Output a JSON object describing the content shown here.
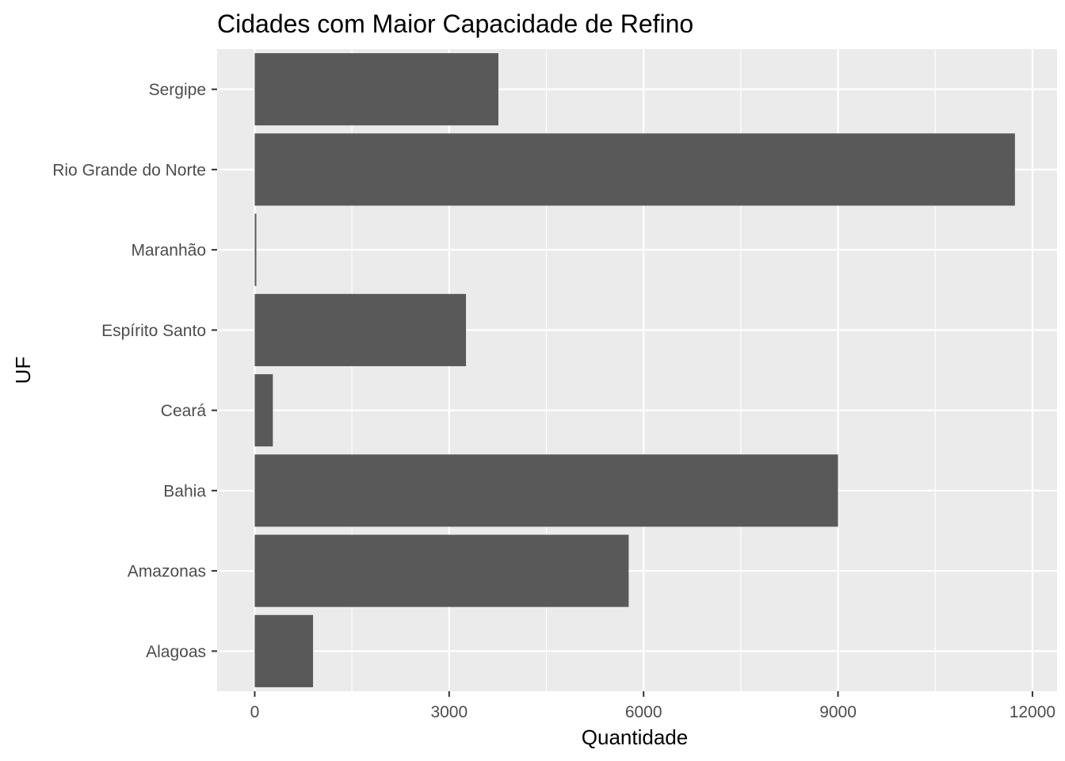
{
  "chart_data": {
    "type": "bar",
    "orientation": "horizontal",
    "title": "Cidades com Maior Capacidade de Refino",
    "xlabel": "Quantidade",
    "ylabel": "UF",
    "categories": [
      "Alagoas",
      "Amazonas",
      "Bahia",
      "Ceará",
      "Espírito Santo",
      "Maranhão",
      "Rio Grande do Norte",
      "Sergipe"
    ],
    "values": [
      900,
      5770,
      9000,
      280,
      3260,
      25,
      11730,
      3760
    ],
    "xlim": [
      -580,
      12380
    ],
    "x_ticks": [
      0,
      3000,
      6000,
      9000,
      12000
    ],
    "x_tick_labels": [
      "0",
      "3000",
      "6000",
      "9000",
      "12000"
    ],
    "grid": true,
    "legend": "none",
    "colors": {
      "panel": "#ebebeb",
      "grid": "#ffffff",
      "bar": "#595959",
      "tick_text": "#4d4d4d",
      "tick_mark": "#333333"
    }
  }
}
